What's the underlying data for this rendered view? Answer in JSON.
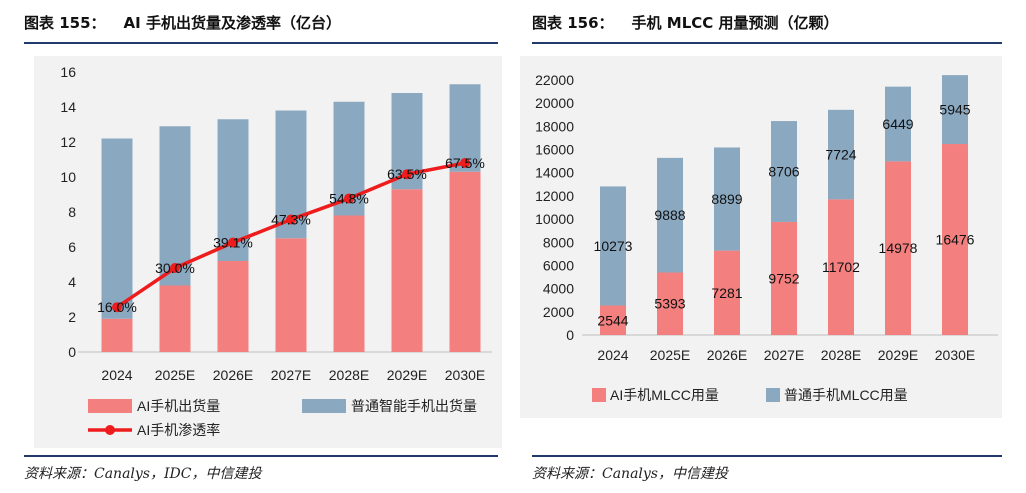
{
  "left": {
    "figure_no": "图表 155：",
    "title": "AI 手机出货量及渗透率（亿台）",
    "source": "资料来源：Canalys，IDC，中信建投"
  },
  "right": {
    "figure_no": "图表 156：",
    "title": "手机 MLCC 用量预测（亿颗）",
    "source": "资料来源：Canalys，中信建投"
  },
  "colors": {
    "ai": "#f47f7f",
    "normal": "#8aa9c1",
    "line": "#ee1c1c",
    "rule": "#1f3a6b"
  },
  "chart_data": [
    {
      "type": "bar",
      "stacked": true,
      "categories": [
        "2024",
        "2025E",
        "2026E",
        "2027E",
        "2028E",
        "2029E",
        "2030E"
      ],
      "series": [
        {
          "name": "AI手机出货量",
          "values": [
            1.9,
            3.8,
            5.2,
            6.5,
            7.8,
            9.3,
            10.3
          ]
        },
        {
          "name": "普通智能手机出货量",
          "values": [
            10.3,
            9.1,
            8.1,
            7.3,
            6.5,
            5.5,
            5.0
          ]
        }
      ],
      "line_series": {
        "name": "AI手机渗透率",
        "values": [
          16.0,
          30.0,
          39.1,
          47.3,
          54.8,
          63.5,
          67.5
        ],
        "labels": [
          "16.0%",
          "30.0%",
          "39.1%",
          "47.3%",
          "54.8%",
          "63.5%",
          "67.5%"
        ]
      },
      "yticks": [
        "0",
        "2",
        "4",
        "6",
        "8",
        "10",
        "12",
        "14",
        "16"
      ],
      "ylim": [
        0,
        16
      ],
      "legend": "bottom"
    },
    {
      "type": "bar",
      "stacked": true,
      "categories": [
        "2024",
        "2025E",
        "2026E",
        "2027E",
        "2028E",
        "2029E",
        "2030E"
      ],
      "series": [
        {
          "name": "AI手机MLCC用量",
          "values": [
            2544,
            5393,
            7281,
            9752,
            11702,
            14978,
            16476
          ]
        },
        {
          "name": "普通手机MLCC用量",
          "values": [
            10273,
            9888,
            8899,
            8706,
            7724,
            6449,
            5945
          ]
        }
      ],
      "yticks": [
        "0",
        "2000",
        "4000",
        "6000",
        "8000",
        "10000",
        "12000",
        "14000",
        "16000",
        "18000",
        "20000",
        "22000"
      ],
      "ylim": [
        0,
        22000
      ],
      "legend": "bottom"
    }
  ]
}
